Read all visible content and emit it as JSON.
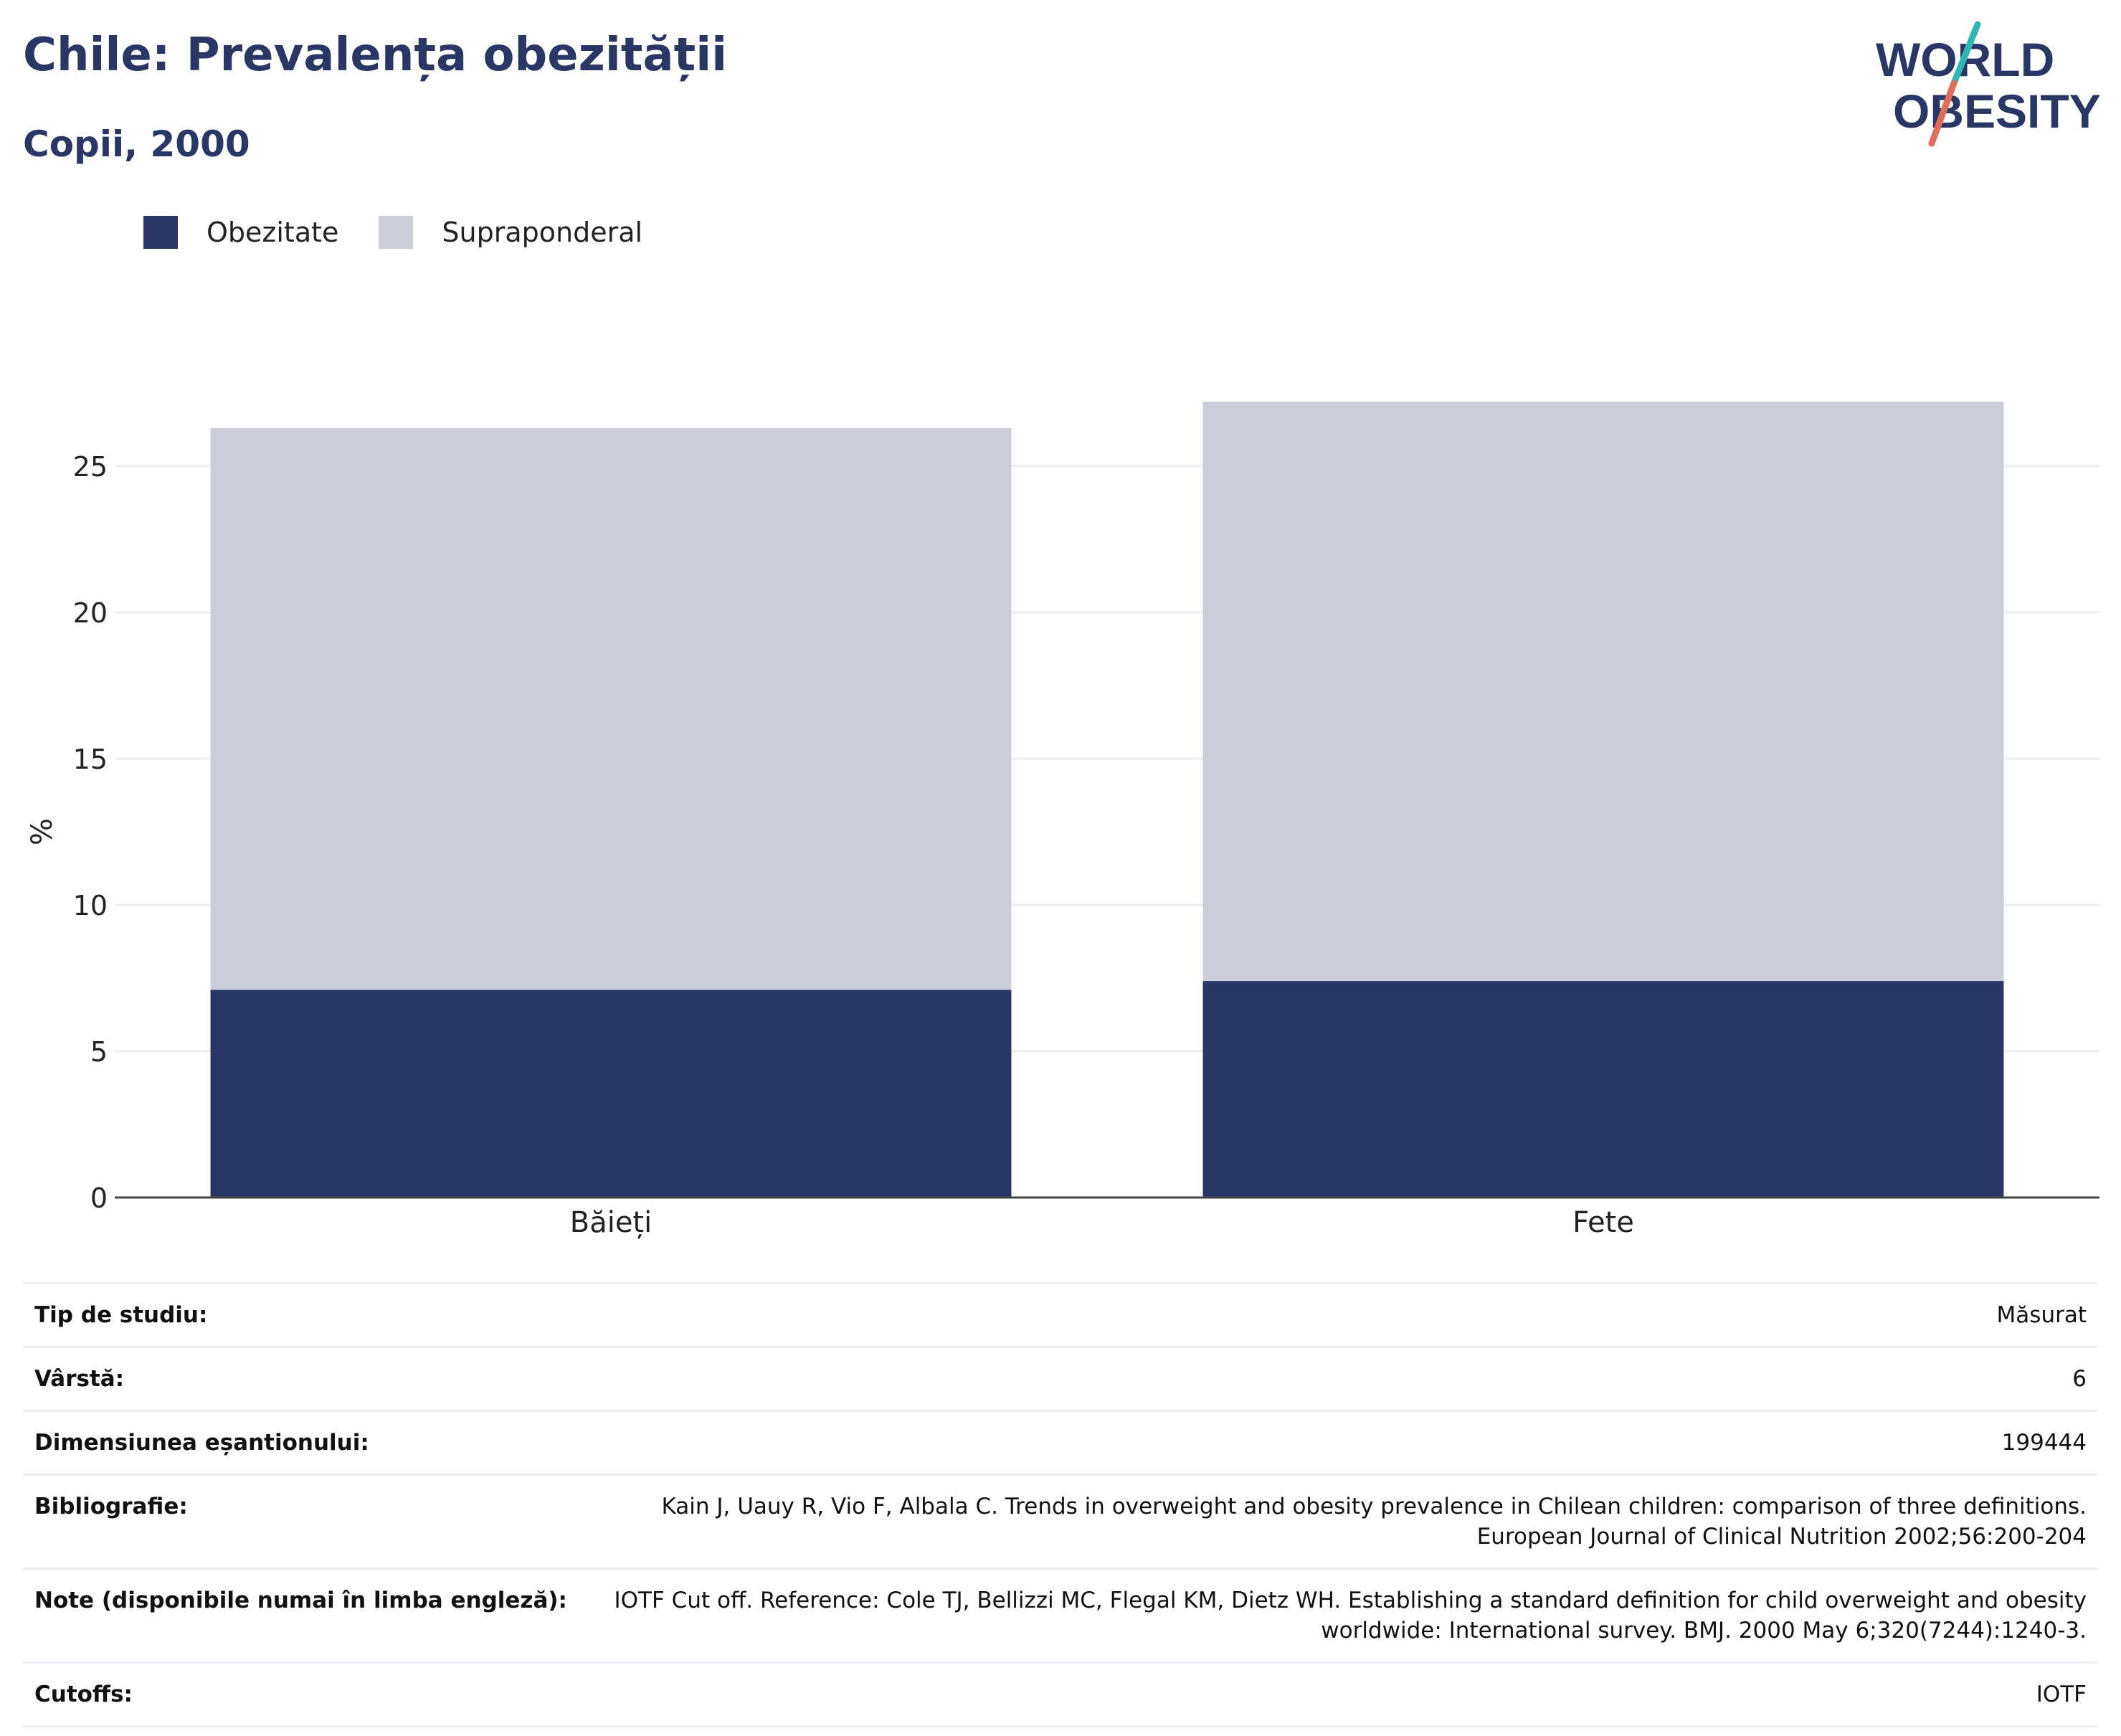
{
  "header": {
    "title": "Chile: Prevalența obezității",
    "subtitle": "Copii, 2000"
  },
  "logo": {
    "line1": "WORLD",
    "line2": "OBESITY",
    "accent_teal": "#2fb6b3",
    "accent_coral": "#e06c5a",
    "text_color": "#2a3663"
  },
  "legend": [
    {
      "label": "Obezitate",
      "color": "#2a3663"
    },
    {
      "label": "Supraponderal",
      "color": "#cacdd9"
    }
  ],
  "chart_data": {
    "type": "bar",
    "stacked": true,
    "categories": [
      "Băieți",
      "Fete"
    ],
    "series": [
      {
        "name": "Obezitate",
        "values": [
          7.1,
          7.4
        ],
        "color": "#2a3663"
      },
      {
        "name": "Supraponderal",
        "values": [
          19.2,
          19.8
        ],
        "color": "#cacdd9"
      }
    ],
    "ylabel": "%",
    "ylim": [
      0,
      28
    ],
    "yticks": [
      0,
      5,
      10,
      15,
      20,
      25
    ],
    "grid": true,
    "legend_position": "top-left"
  },
  "meta": [
    {
      "key": "Tip de studiu:",
      "value": "Măsurat"
    },
    {
      "key": "Vârstă:",
      "value": "6"
    },
    {
      "key": "Dimensiunea eșantionului:",
      "value": "199444"
    },
    {
      "key": "Bibliografie:",
      "value": "Kain J, Uauy R, Vio F, Albala C. Trends in overweight and obesity prevalence in Chilean children: comparison of three definitions. European Journal of Clinical Nutrition 2002;56:200-204"
    },
    {
      "key": "Note (disponibile numai în limba engleză):",
      "value": "IOTF Cut off. Reference: Cole TJ, Bellizzi MC, Flegal KM, Dietz WH. Establishing a standard definition for child overweight and obesity worldwide: International survey. BMJ. 2000 May 6;320(7244):1240-3."
    },
    {
      "key": "Cutoffs:",
      "value": "IOTF"
    }
  ]
}
